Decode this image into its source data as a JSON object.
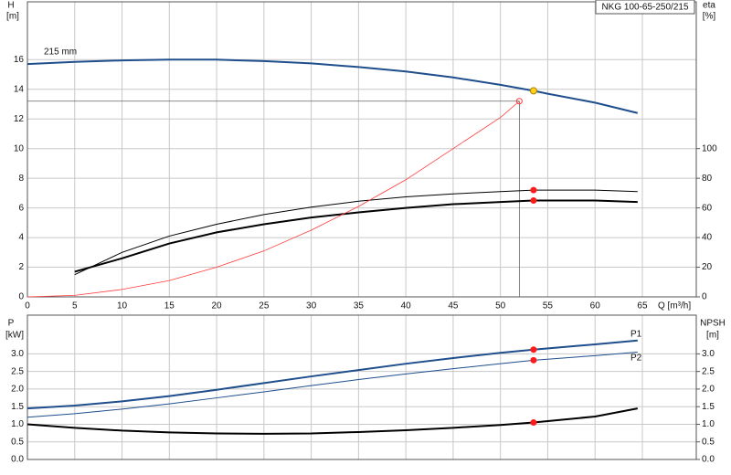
{
  "chart_data": [
    {
      "type": "line",
      "title": "NKG 100-65-250/215",
      "y_label": "H",
      "y_unit": "[m]",
      "y2_label": "eta",
      "y2_unit": "[%]",
      "x_label": "Q [m³/h]",
      "xlim": [
        0,
        70.7
      ],
      "xticks": [
        0,
        5,
        10,
        15,
        20,
        25,
        30,
        35,
        40,
        45,
        50,
        55,
        60,
        65
      ],
      "ylim": [
        0,
        19.9
      ],
      "yticks": [
        0,
        2,
        4,
        6,
        8,
        10,
        12,
        14,
        16
      ],
      "y2lim": [
        0,
        199
      ],
      "y2ticks": [
        0,
        20,
        40,
        60,
        80,
        100
      ],
      "grid": true,
      "series": [
        {
          "name": "215 mm",
          "color": "#1f4e8c",
          "line_width": 2,
          "x": [
            0,
            5,
            10,
            15,
            20,
            25,
            30,
            35,
            40,
            45,
            50,
            53.5,
            55,
            60,
            64.5
          ],
          "values": [
            15.7,
            15.85,
            15.95,
            16.0,
            16.0,
            15.9,
            15.75,
            15.5,
            15.2,
            14.8,
            14.3,
            13.9,
            13.7,
            13.1,
            12.4
          ]
        },
        {
          "color": "#000000",
          "line_width": 1,
          "axis": "y2",
          "x": [
            5,
            10,
            15,
            20,
            25,
            30,
            35,
            40,
            45,
            50,
            53.5,
            60,
            64.5
          ],
          "values": [
            15,
            30,
            41,
            49,
            55.5,
            60.5,
            64.5,
            67.5,
            69.5,
            71,
            72,
            72,
            71
          ]
        },
        {
          "color": "#000000",
          "line_width": 2,
          "axis": "y2",
          "x": [
            5,
            10,
            15,
            20,
            25,
            30,
            35,
            40,
            45,
            50,
            53.5,
            60,
            64.5
          ],
          "values": [
            17,
            26,
            36,
            43.5,
            49,
            53.5,
            57,
            60,
            62.5,
            64,
            65,
            65,
            64
          ]
        },
        {
          "color": "#ff3b3b",
          "line_width": 0.8,
          "x": [
            0,
            5,
            10,
            15,
            20,
            25,
            30,
            35,
            40,
            45,
            50,
            52
          ],
          "values": [
            0,
            0.1,
            0.5,
            1.1,
            2.0,
            3.1,
            4.5,
            6.1,
            7.9,
            10.0,
            12.1,
            13.2
          ]
        }
      ],
      "duty_point": {
        "x": 52,
        "y": 13.2,
        "color": "#ff3b3b"
      },
      "markers": [
        {
          "x": 53.5,
          "y": 13.9,
          "color": "#ffd21a"
        },
        {
          "x": 53.5,
          "y": 72,
          "color": "#ff1a1a",
          "axis": "y2"
        },
        {
          "x": 53.5,
          "y": 65,
          "color": "#ff1a1a",
          "axis": "y2"
        }
      ]
    },
    {
      "type": "line",
      "y_label": "P",
      "y_unit": "[kW]",
      "y2_label": "NPSH",
      "y2_unit": "[m]",
      "xlim": [
        0,
        70.7
      ],
      "ylim": [
        0,
        4.1
      ],
      "yticks": [
        {
          "value": 0,
          "label": "0.0"
        },
        {
          "value": 0.5,
          "label": "0.5"
        },
        {
          "value": 1,
          "label": "1.0"
        },
        {
          "value": 1.5,
          "label": "1.5"
        },
        {
          "value": 2,
          "label": "2.0"
        },
        {
          "value": 2.5,
          "label": "2.5"
        },
        {
          "value": 3,
          "label": "3.0"
        }
      ],
      "y2lim": [
        0,
        4.1
      ],
      "y2ticks": [
        {
          "value": 0,
          "label": "0.0"
        },
        {
          "value": 0.5,
          "label": "0.5"
        },
        {
          "value": 1,
          "label": "1.0"
        },
        {
          "value": 1.5,
          "label": "1.5"
        },
        {
          "value": 2,
          "label": "2.0"
        },
        {
          "value": 2.5,
          "label": "2.5"
        },
        {
          "value": 3,
          "label": "3.0"
        }
      ],
      "grid": true,
      "series": [
        {
          "name": "P1",
          "color": "#1f4e8c",
          "line_width": 2,
          "x": [
            0,
            5,
            10,
            15,
            20,
            25,
            30,
            35,
            40,
            45,
            50,
            53.5,
            60,
            64.5
          ],
          "values": [
            1.45,
            1.53,
            1.65,
            1.8,
            1.98,
            2.17,
            2.36,
            2.54,
            2.72,
            2.88,
            3.03,
            3.12,
            3.27,
            3.38
          ]
        },
        {
          "name": "P2",
          "color": "#1f4e8c",
          "line_width": 1,
          "x": [
            0,
            5,
            10,
            15,
            20,
            25,
            30,
            35,
            40,
            45,
            50,
            53.5,
            60,
            64.5
          ],
          "values": [
            1.2,
            1.3,
            1.43,
            1.58,
            1.75,
            1.92,
            2.1,
            2.27,
            2.43,
            2.58,
            2.72,
            2.82,
            2.95,
            3.05
          ]
        },
        {
          "color": "#000000",
          "line_width": 2,
          "axis": "y2",
          "x": [
            0,
            5,
            10,
            15,
            20,
            25,
            30,
            35,
            40,
            45,
            50,
            53.5,
            60,
            64.5
          ],
          "values": [
            1.0,
            0.9,
            0.82,
            0.77,
            0.74,
            0.73,
            0.74,
            0.78,
            0.83,
            0.9,
            0.98,
            1.05,
            1.22,
            1.45
          ]
        }
      ],
      "markers": [
        {
          "x": 53.5,
          "y": 3.12,
          "color": "#ff1a1a"
        },
        {
          "x": 53.5,
          "y": 2.82,
          "color": "#ff1a1a"
        },
        {
          "x": 53.5,
          "y": 1.05,
          "color": "#ff1a1a",
          "axis": "y2"
        }
      ]
    }
  ]
}
